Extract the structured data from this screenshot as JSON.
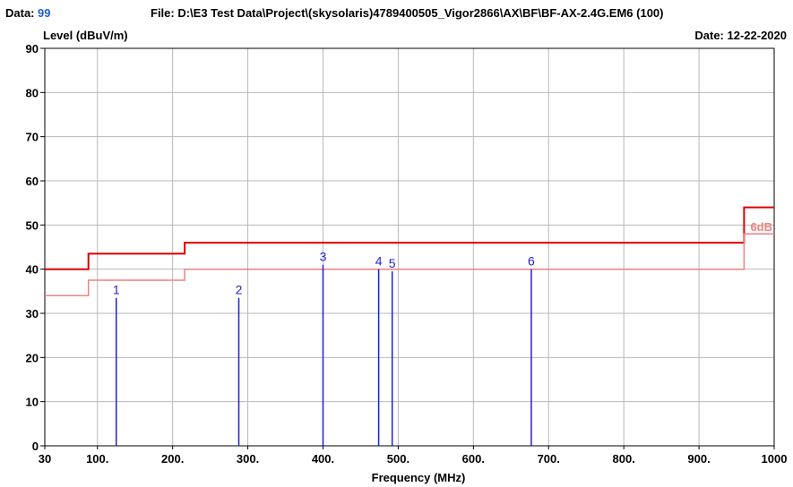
{
  "header": {
    "data_label": "Data:",
    "data_value": "99",
    "file_text": "File: D:\\E3 Test Data\\Project\\(skysolaris)4789400505_Vigor2866\\AX\\BF\\BF-AX-2.4G.EM6  (100)",
    "date_text": "Date: 12-22-2020"
  },
  "chart_data": {
    "type": "line",
    "ylabel": "Level (dBuV/m)",
    "xlabel": "Frequency (MHz)",
    "xlim": [
      30,
      1000
    ],
    "ylim": [
      0,
      90
    ],
    "grid": true,
    "x_ticks": [
      {
        "value": 30,
        "label": "30"
      },
      {
        "value": 100,
        "label": "100."
      },
      {
        "value": 200,
        "label": "200."
      },
      {
        "value": 300,
        "label": "300."
      },
      {
        "value": 400,
        "label": "400."
      },
      {
        "value": 500,
        "label": "500."
      },
      {
        "value": 600,
        "label": "600."
      },
      {
        "value": 700,
        "label": "700."
      },
      {
        "value": 800,
        "label": "800."
      },
      {
        "value": 900,
        "label": "900."
      },
      {
        "value": 1000,
        "label": "1000"
      }
    ],
    "x_grid": [
      100,
      200,
      300,
      400,
      500,
      600,
      700,
      800,
      900
    ],
    "y_ticks": [
      0,
      10,
      20,
      30,
      40,
      50,
      60,
      70,
      80,
      90
    ],
    "series": [
      {
        "color": "#dd0000",
        "style": "step",
        "points": [
          [
            30,
            40
          ],
          [
            88,
            40
          ],
          [
            88,
            43.5
          ],
          [
            216,
            43.5
          ],
          [
            216,
            46
          ],
          [
            960,
            46
          ],
          [
            960,
            54
          ],
          [
            1000,
            54
          ]
        ]
      },
      {
        "color": "#f08080",
        "style": "step",
        "label": "6dB",
        "points": [
          [
            30,
            34
          ],
          [
            88,
            34
          ],
          [
            88,
            37.5
          ],
          [
            216,
            37.5
          ],
          [
            216,
            40
          ],
          [
            960,
            40
          ],
          [
            960,
            48
          ],
          [
            1000,
            48
          ]
        ]
      }
    ],
    "markers": [
      {
        "label": "1",
        "x": 125,
        "y": 33.5
      },
      {
        "label": "2",
        "x": 288,
        "y": 33.5
      },
      {
        "label": "3",
        "x": 400,
        "y": 41
      },
      {
        "label": "4",
        "x": 474,
        "y": 40
      },
      {
        "label": "5",
        "x": 492,
        "y": 39.5
      },
      {
        "label": "6",
        "x": 677,
        "y": 40
      }
    ],
    "colors": {
      "marker": "#1f1fd6",
      "grid": "#b8b8b8",
      "header_value": "#1f5fd0"
    }
  }
}
